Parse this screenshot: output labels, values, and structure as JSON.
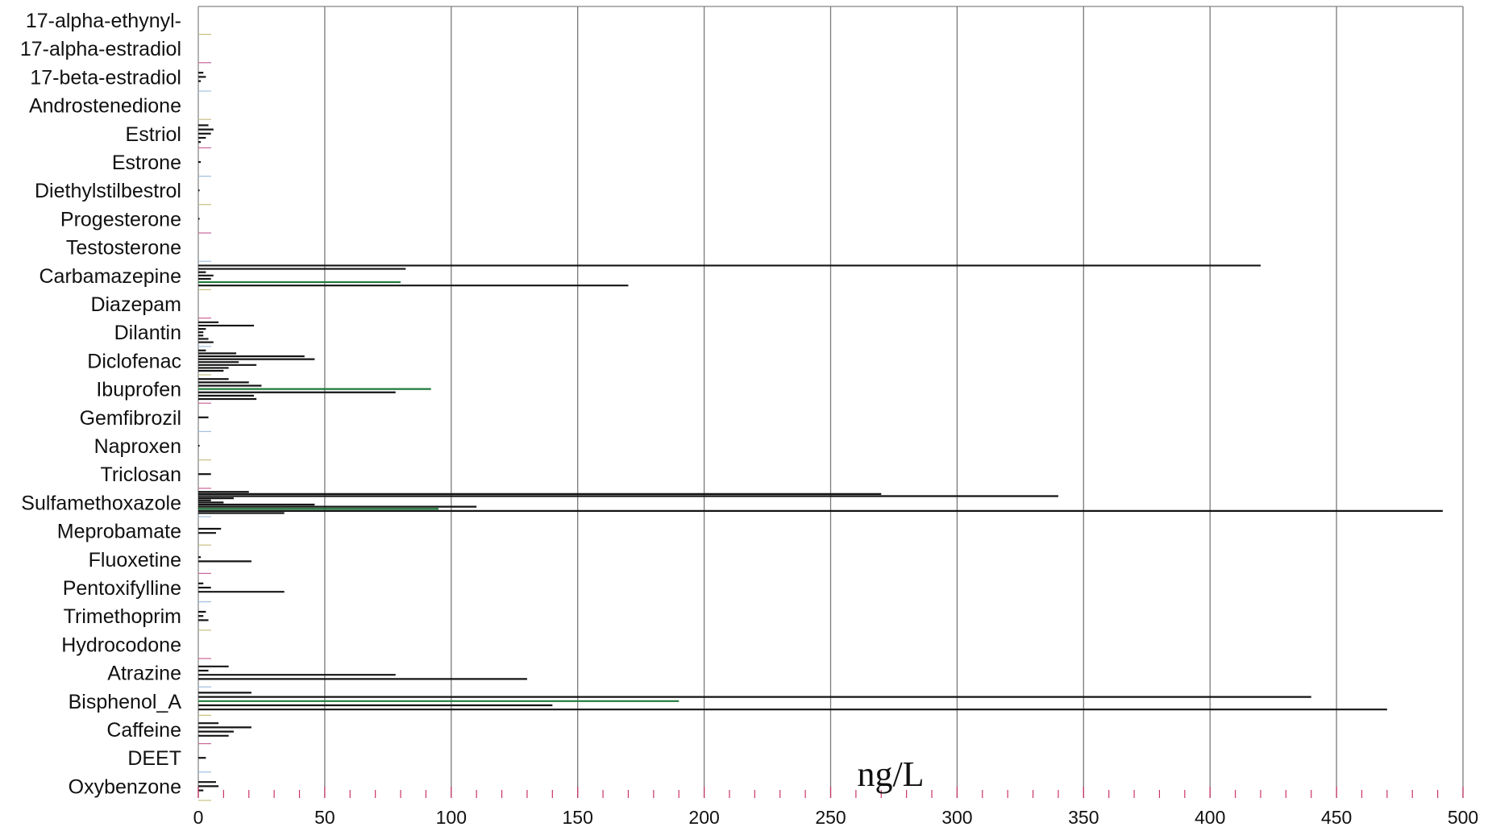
{
  "chart_data": {
    "type": "bar",
    "orientation": "horizontal",
    "xlabel": "ng/L",
    "xlim": [
      0,
      500
    ],
    "xticks": [
      0,
      50,
      100,
      150,
      200,
      250,
      300,
      350,
      400,
      450,
      500
    ],
    "minor_tick_step": 10,
    "grid": "vertical",
    "categories": [
      "17-alpha-ethynyl-",
      "17-alpha-estradiol",
      "17-beta-estradiol",
      "Androstenedione",
      "Estriol",
      "Estrone",
      "Diethylstilbestrol",
      "Progesterone",
      "Testosterone",
      "Carbamazepine",
      "Diazepam",
      "Dilantin",
      "Diclofenac",
      "Ibuprofen",
      "Gemfibrozil",
      "Naproxen",
      "Triclosan",
      "Sulfamethoxazole",
      "Meprobamate",
      "Fluoxetine",
      "Pentoxifylline",
      "Trimethoprim",
      "Hydrocodone",
      "Atrazine",
      "Bisphenol_A",
      "Caffeine",
      "DEET",
      "Oxybenzone"
    ],
    "values": [
      [],
      [],
      [
        2,
        3,
        1
      ],
      [],
      [
        4,
        6,
        5,
        3,
        1
      ],
      [
        1
      ],
      [
        0.5
      ],
      [
        0.5
      ],
      [],
      [
        420,
        82,
        3,
        6,
        5,
        80,
        170
      ],
      [],
      [
        8,
        22,
        3,
        2,
        2,
        4,
        6
      ],
      [
        3,
        15,
        42,
        46,
        16,
        23,
        12,
        10
      ],
      [
        12,
        20,
        25,
        92,
        78,
        22,
        23
      ],
      [
        4
      ],
      [
        0.5
      ],
      [
        5
      ],
      [
        20,
        270,
        340,
        14,
        5,
        10,
        46,
        110,
        95,
        492,
        34
      ],
      [
        9,
        7
      ],
      [
        1,
        21
      ],
      [
        2,
        5,
        34
      ],
      [
        3,
        2,
        4
      ],
      [],
      [
        12,
        4,
        78,
        130
      ],
      [
        21,
        440,
        190,
        140,
        470
      ],
      [
        8,
        21,
        14,
        12
      ],
      [
        3
      ],
      [
        7,
        8,
        2
      ]
    ],
    "colors": {
      "bar": "#141414",
      "accent_bar": "#1e7a3a",
      "grid": "#7a7a7a",
      "axis": "#999999",
      "minor_tick": "#cc3366",
      "separator_ticks": [
        "#c8c080",
        "#cc6699",
        "#9fbfdf"
      ],
      "baseline_start": "#d02060",
      "baseline_end": "#2a9a2a"
    }
  }
}
